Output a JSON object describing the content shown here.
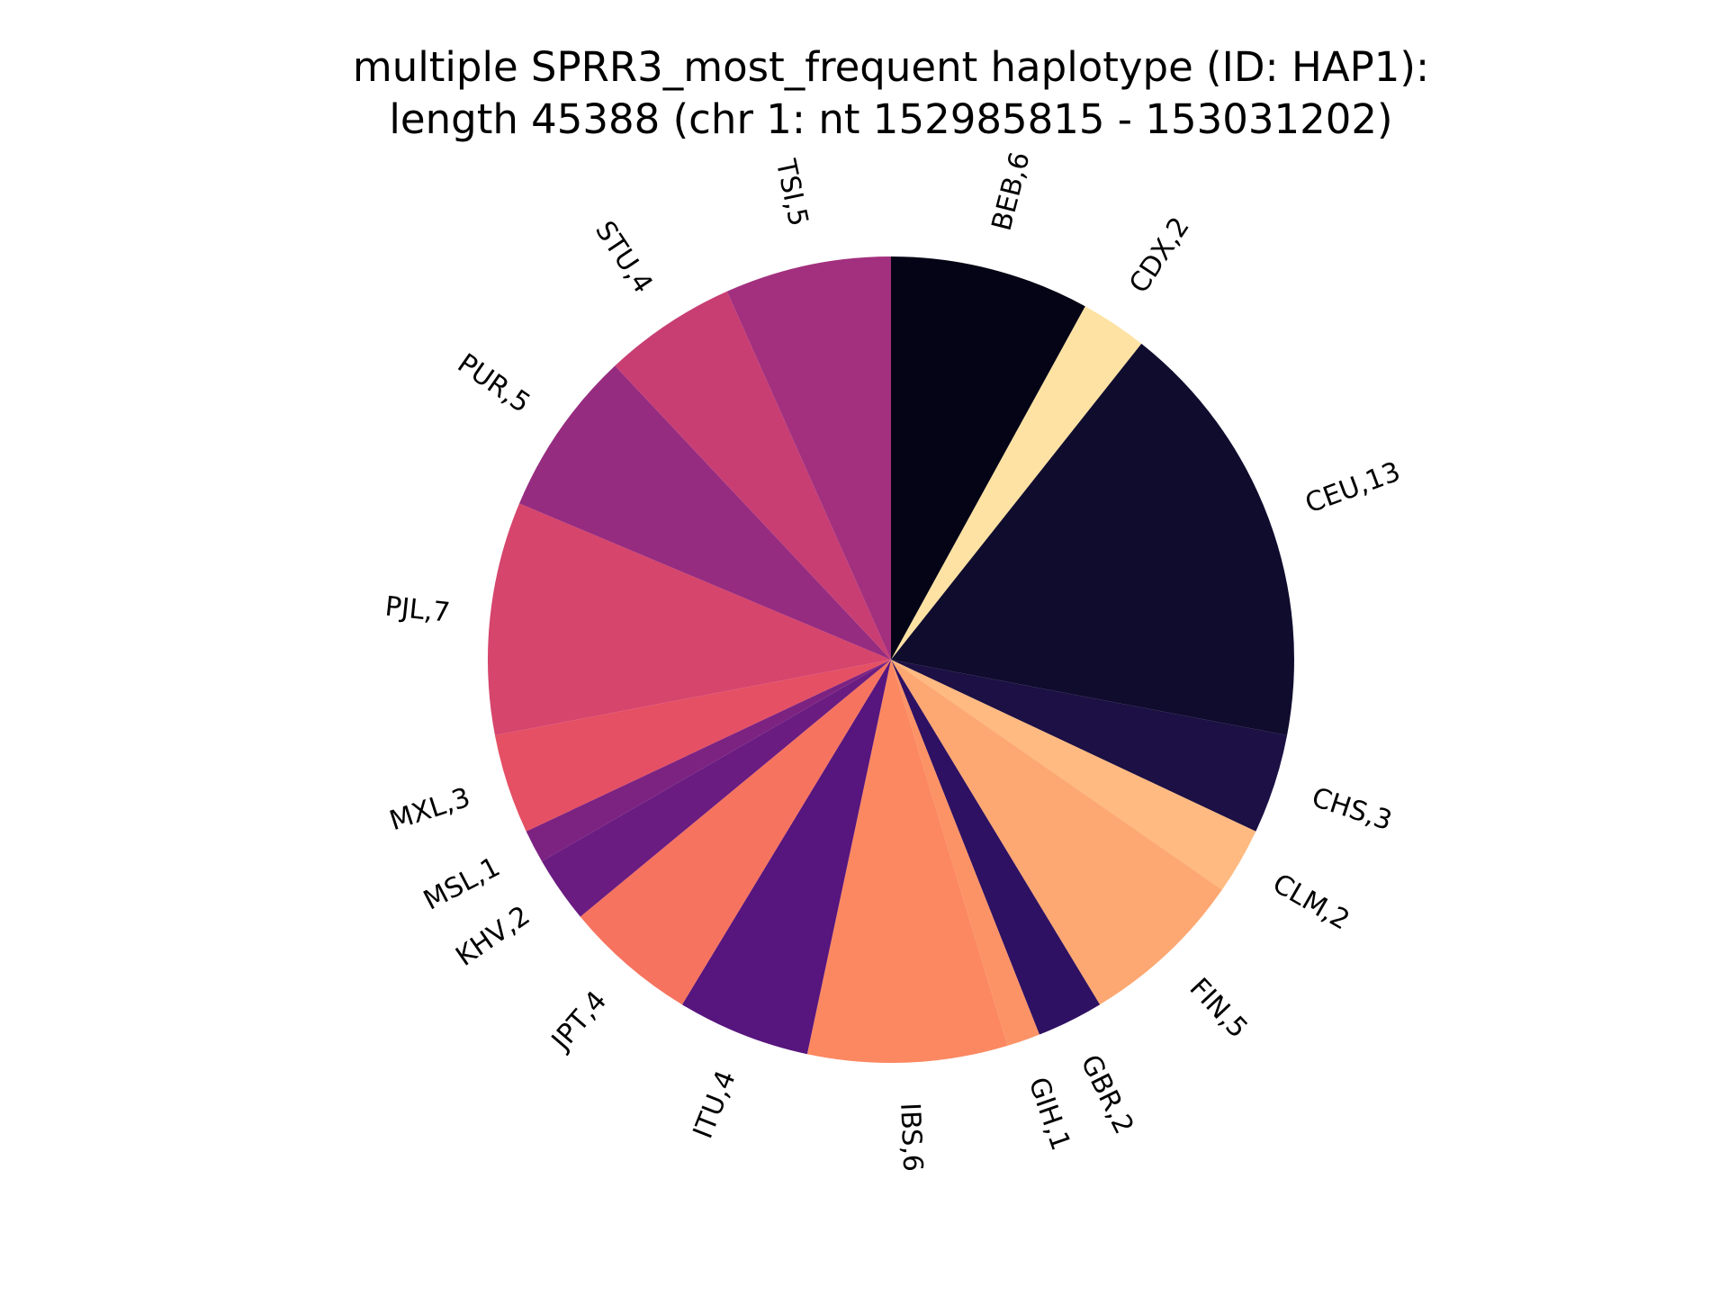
{
  "chart_data": {
    "type": "pie",
    "title": [
      "multiple SPRR3_most_frequent haplotype (ID: HAP1):",
      "length 45388 (chr 1: nt 152985815 - 153031202)"
    ],
    "start_angle_deg": 90,
    "direction": "clockwise",
    "slices": [
      {
        "label": "BEB,6",
        "value": 6,
        "color": "#050416"
      },
      {
        "label": "CDX,2",
        "value": 2,
        "color": "#fde2a3"
      },
      {
        "label": "CEU,13",
        "value": 13,
        "color": "#100c2e"
      },
      {
        "label": "CHS,3",
        "value": 3,
        "color": "#1c1044"
      },
      {
        "label": "CLM,2",
        "value": 2,
        "color": "#feba80"
      },
      {
        "label": "FIN,5",
        "value": 5,
        "color": "#fda872"
      },
      {
        "label": "GBR,2",
        "value": 2,
        "color": "#2f1163"
      },
      {
        "label": "GIH,1",
        "value": 1,
        "color": "#fc9366"
      },
      {
        "label": "IBS,6",
        "value": 6,
        "color": "#fb8861"
      },
      {
        "label": "ITU,4",
        "value": 4,
        "color": "#57157e"
      },
      {
        "label": "JPT,4",
        "value": 4,
        "color": "#f6735f"
      },
      {
        "label": "KHV,2",
        "value": 2,
        "color": "#6a1c80"
      },
      {
        "label": "MSL,1",
        "value": 1,
        "color": "#7c2382"
      },
      {
        "label": "MXL,3",
        "value": 3,
        "color": "#e55064"
      },
      {
        "label": "PJL,7",
        "value": 7,
        "color": "#d6456c"
      },
      {
        "label": "PUR,5",
        "value": 5,
        "color": "#962c80"
      },
      {
        "label": "STU,4",
        "value": 4,
        "color": "#c83e73"
      },
      {
        "label": "TSI,5",
        "value": 5,
        "color": "#a3307e"
      }
    ]
  }
}
